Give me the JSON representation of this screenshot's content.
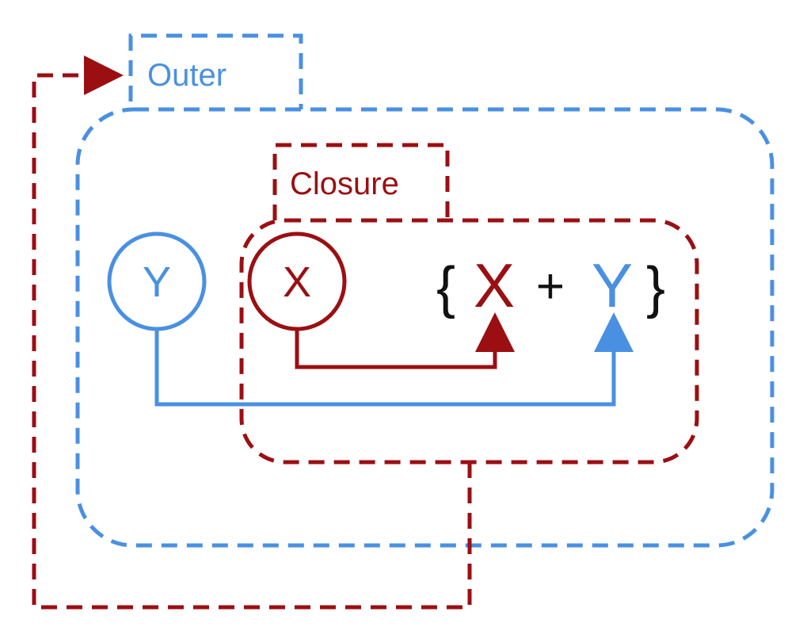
{
  "diagram": {
    "outer_label": "Outer",
    "closure_label": "Closure",
    "outer_var": "Y",
    "closure_var": "X",
    "expr": {
      "open_brace": "{",
      "left": "X",
      "op": "+",
      "right": "Y",
      "close_brace": "}"
    }
  },
  "colors": {
    "blue": "#4a90e2",
    "dark_red": "#9b0f12",
    "black": "#111111"
  }
}
